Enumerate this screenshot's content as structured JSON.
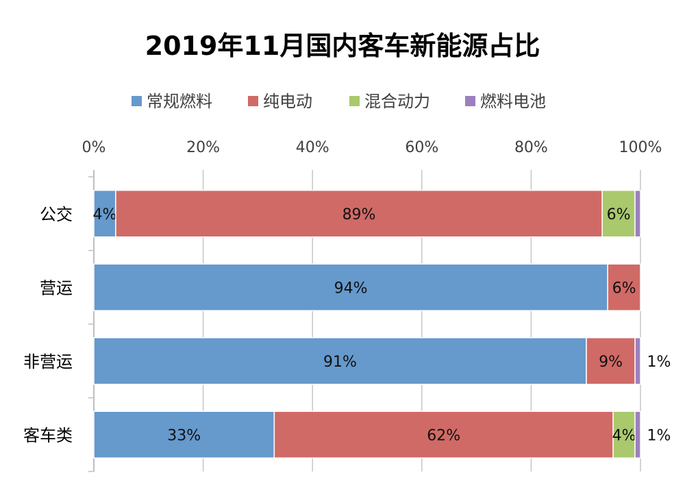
{
  "chart_data": {
    "type": "bar",
    "orientation": "horizontal",
    "stacked": "percent",
    "title": "2019年11月国内客车新能源占比",
    "categories": [
      "公交",
      "营运",
      "非营运",
      "客车类"
    ],
    "series": [
      {
        "name": "常规燃料",
        "color": "#6699cc",
        "values": [
          4,
          94,
          91,
          33
        ],
        "labels": [
          "4%",
          "94%",
          "91%",
          "33%"
        ]
      },
      {
        "name": "纯电动",
        "color": "#d06a66",
        "values": [
          89,
          6,
          9,
          62
        ],
        "labels": [
          "89%",
          "6%",
          "9%",
          "62%"
        ]
      },
      {
        "name": "混合动力",
        "color": "#a9c96c",
        "values": [
          6,
          0,
          0,
          4
        ],
        "labels": [
          "6%",
          "",
          "",
          "4%"
        ]
      },
      {
        "name": "燃料电池",
        "color": "#9c80bd",
        "values": [
          1,
          0,
          1,
          1
        ],
        "labels": [
          "",
          "",
          "1%",
          "1%"
        ]
      }
    ],
    "xlim": [
      0,
      100
    ],
    "x_ticks": [
      "0%",
      "20%",
      "40%",
      "60%",
      "80%",
      "100%"
    ],
    "x_tick_values": [
      0,
      20,
      40,
      60,
      80,
      100
    ],
    "x_axis_position": "top",
    "legend_position": "top",
    "grid": true
  }
}
